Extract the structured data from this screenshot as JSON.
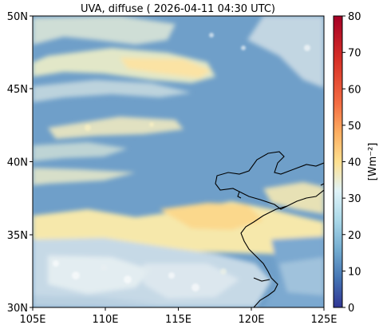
{
  "title": "UVA, diffuse ( 2026-04-11 04:30 UTC)",
  "map": {
    "lon_ticks": [
      "105E",
      "110E",
      "115E",
      "120E",
      "125E"
    ],
    "lat_ticks": [
      "30N",
      "35N",
      "40N",
      "45N",
      "50N"
    ],
    "extent": {
      "lon": [
        105,
        125
      ],
      "lat": [
        30,
        50
      ]
    },
    "field": "diffuse UVA irradiance",
    "coastline_color": "#000000"
  },
  "colorbar": {
    "label": "[Wm⁻²]",
    "ticks": [
      "0",
      "10",
      "20",
      "30",
      "40",
      "50",
      "60",
      "70",
      "80"
    ],
    "range": [
      0,
      80
    ],
    "colormap": "RdYlBu_r",
    "colors": [
      "#313695",
      "#4575b4",
      "#74add1",
      "#abd9e9",
      "#e0f3f8",
      "#ffffbf",
      "#fee090",
      "#fdae61",
      "#f46d43",
      "#d73027",
      "#a50026"
    ]
  }
}
